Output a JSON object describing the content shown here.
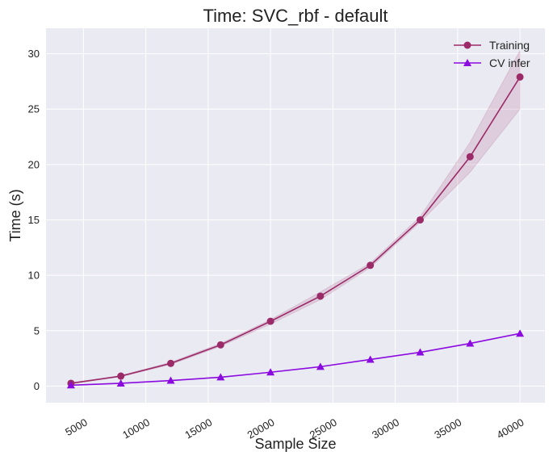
{
  "chart_data": {
    "type": "line",
    "title": "Time: SVC_rbf - default",
    "xlabel": "Sample Size",
    "ylabel": "Time (s)",
    "x": [
      4000,
      8000,
      12000,
      16000,
      20000,
      24000,
      28000,
      32000,
      36000,
      40000
    ],
    "xticks": [
      5000,
      10000,
      15000,
      20000,
      25000,
      30000,
      35000,
      40000
    ],
    "yticks": [
      0,
      5,
      10,
      15,
      20,
      25,
      30
    ],
    "xlim": [
      2000,
      42000
    ],
    "ylim": [
      -1.5,
      32.3
    ],
    "grid": true,
    "legend_position": "top-right",
    "series": [
      {
        "name": "Training",
        "color": "#9b2a68",
        "marker": "circle",
        "values": [
          0.25,
          0.9,
          2.05,
          3.72,
          5.85,
          8.12,
          10.9,
          15.0,
          20.7,
          27.9
        ],
        "band_low": [
          0.2,
          0.85,
          1.95,
          3.6,
          5.6,
          7.8,
          10.7,
          14.8,
          19.3,
          25.0
        ],
        "band_high": [
          0.3,
          0.95,
          2.15,
          3.85,
          6.0,
          8.5,
          11.1,
          15.3,
          22.0,
          30.3
        ]
      },
      {
        "name": "CV infer",
        "color": "#8b0ae0",
        "marker": "triangle",
        "values": [
          0.08,
          0.25,
          0.5,
          0.8,
          1.25,
          1.75,
          2.4,
          3.05,
          3.85,
          4.75
        ]
      }
    ]
  }
}
